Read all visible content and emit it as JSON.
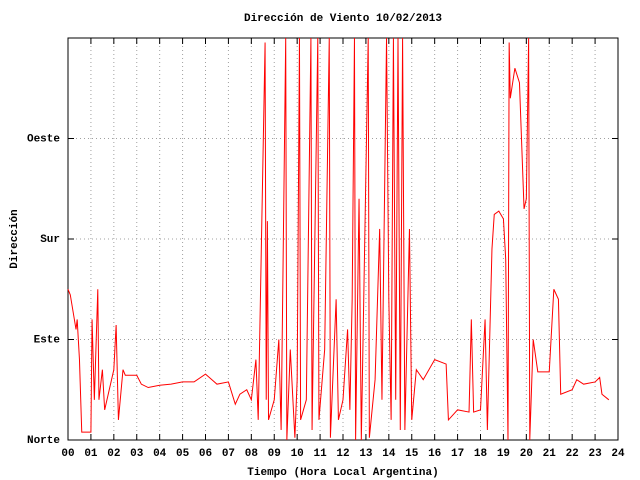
{
  "chart_data": {
    "type": "line",
    "title": "Dirección de Viento 10/02/2013",
    "xlabel": "Tiempo (Hora Local Argentina)",
    "ylabel": "Dirección",
    "color": "#ff0000",
    "grid": true,
    "xlim": [
      0,
      24
    ],
    "ylim": [
      0,
      360
    ],
    "xticks": [
      {
        "value": 0,
        "label": "00"
      },
      {
        "value": 1,
        "label": "01"
      },
      {
        "value": 2,
        "label": "02"
      },
      {
        "value": 3,
        "label": "03"
      },
      {
        "value": 4,
        "label": "04"
      },
      {
        "value": 5,
        "label": "05"
      },
      {
        "value": 6,
        "label": "06"
      },
      {
        "value": 7,
        "label": "07"
      },
      {
        "value": 8,
        "label": "08"
      },
      {
        "value": 9,
        "label": "09"
      },
      {
        "value": 10,
        "label": "10"
      },
      {
        "value": 11,
        "label": "11"
      },
      {
        "value": 12,
        "label": "12"
      },
      {
        "value": 13,
        "label": "13"
      },
      {
        "value": 14,
        "label": "14"
      },
      {
        "value": 15,
        "label": "15"
      },
      {
        "value": 16,
        "label": "16"
      },
      {
        "value": 17,
        "label": "17"
      },
      {
        "value": 18,
        "label": "18"
      },
      {
        "value": 19,
        "label": "19"
      },
      {
        "value": 20,
        "label": "20"
      },
      {
        "value": 21,
        "label": "21"
      },
      {
        "value": 22,
        "label": "22"
      },
      {
        "value": 23,
        "label": "23"
      },
      {
        "value": 24,
        "label": "24"
      }
    ],
    "yticks": [
      {
        "value": 0,
        "label": "Norte"
      },
      {
        "value": 90,
        "label": "Este"
      },
      {
        "value": 180,
        "label": "Sur"
      },
      {
        "value": 270,
        "label": "Oeste"
      }
    ],
    "x": [
      0.0,
      0.1,
      0.35,
      0.4,
      0.5,
      0.6,
      1.0,
      1.05,
      1.15,
      1.3,
      1.35,
      1.5,
      1.6,
      2.0,
      2.1,
      2.2,
      2.4,
      2.5,
      3.0,
      3.2,
      3.5,
      4.0,
      4.5,
      5.0,
      5.5,
      6.0,
      6.5,
      7.0,
      7.3,
      7.5,
      7.8,
      8.0,
      8.2,
      8.3,
      8.6,
      8.65,
      8.7,
      8.75,
      9.0,
      9.2,
      9.3,
      9.5,
      9.55,
      9.7,
      9.9,
      10.0,
      10.1,
      10.15,
      10.4,
      10.6,
      10.65,
      10.9,
      10.95,
      11.2,
      11.4,
      11.45,
      11.7,
      11.8,
      12.0,
      12.2,
      12.3,
      12.4,
      12.5,
      12.55,
      12.7,
      12.8,
      13.1,
      13.15,
      13.4,
      13.6,
      13.7,
      13.9,
      14.0,
      14.1,
      14.2,
      14.3,
      14.4,
      14.5,
      14.6,
      14.7,
      14.9,
      15.0,
      15.2,
      15.5,
      16.0,
      16.5,
      16.6,
      17.0,
      17.5,
      17.6,
      17.7,
      18.0,
      18.2,
      18.3,
      18.5,
      18.6,
      18.8,
      19.0,
      19.1,
      19.2,
      19.25,
      19.3,
      19.5,
      19.7,
      19.9,
      20.0,
      20.1,
      20.15,
      20.3,
      20.5,
      21.0,
      21.2,
      21.4,
      21.5,
      22.0,
      22.2,
      22.5,
      23.0,
      23.2,
      23.3,
      23.6
    ],
    "values": [
      135,
      130,
      99,
      108,
      72,
      7,
      7,
      108,
      36,
      135,
      36,
      63,
      27,
      63,
      103,
      18,
      63,
      58,
      58,
      50,
      47,
      49,
      50,
      52,
      52,
      59,
      50,
      52,
      32,
      41,
      45,
      36,
      72,
      18,
      356,
      36,
      196,
      18,
      36,
      90,
      9,
      360,
      0,
      81,
      2,
      54,
      360,
      18,
      36,
      360,
      9,
      360,
      18,
      81,
      360,
      2,
      126,
      18,
      36,
      99,
      27,
      126,
      360,
      0,
      216,
      0,
      360,
      2,
      54,
      189,
      36,
      360,
      126,
      18,
      360,
      36,
      360,
      9,
      360,
      9,
      189,
      18,
      63,
      54,
      72,
      68,
      18,
      27,
      25,
      108,
      25,
      27,
      108,
      9,
      171,
      202,
      205,
      198,
      162,
      0,
      356,
      306,
      333,
      320,
      207,
      216,
      360,
      0,
      90,
      61,
      61,
      135,
      126,
      41,
      45,
      54,
      50,
      52,
      56,
      41,
      36
    ]
  }
}
